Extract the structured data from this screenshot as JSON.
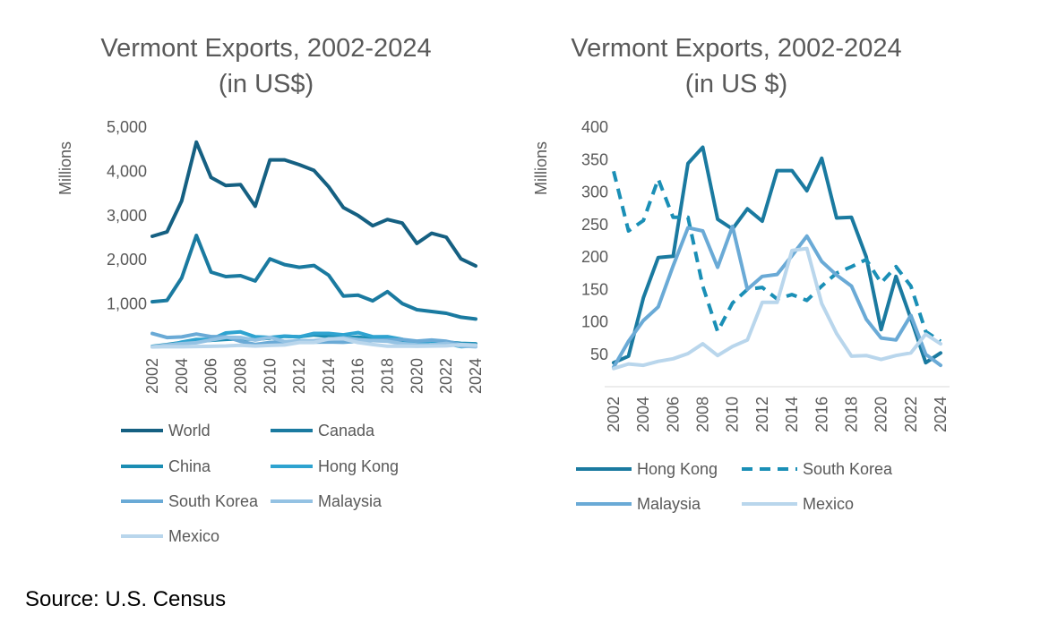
{
  "colors": {
    "World": "#156082",
    "Canada": "#1a7aa0",
    "China": "#1b8db3",
    "Hong Kong": "#2ea3d0",
    "South Korea": "#6aaad6",
    "Malaysia": "#94c2e3",
    "Mexico": "#b9d6ec",
    "HK_right": "#1a7aa0",
    "SK_right": "#1a8fb6",
    "MY_right": "#6aaad6",
    "MX_right": "#b9d6ec",
    "text": "#595959"
  },
  "source_note": "Source: U.S. Census",
  "chart_data": [
    {
      "type": "line",
      "title": [
        "Vermont Exports, 2002-2024",
        "(in US$)"
      ],
      "ylabel": "Millions",
      "ylim": [
        0,
        5000
      ],
      "yticks": [
        1000,
        2000,
        3000,
        4000,
        5000
      ],
      "ytick_labels": [
        "1,000",
        "2,000",
        "3,000",
        "4,000",
        "5,000"
      ],
      "x": [
        2002,
        2003,
        2004,
        2005,
        2006,
        2007,
        2008,
        2009,
        2010,
        2011,
        2012,
        2013,
        2014,
        2015,
        2016,
        2017,
        2018,
        2019,
        2020,
        2021,
        2022,
        2023,
        2024
      ],
      "xticks": [
        "2002",
        "2004",
        "2006",
        "2008",
        "2010",
        "2012",
        "2014",
        "2016",
        "2018",
        "2020",
        "2022",
        "2024"
      ],
      "legend_position": "bottom",
      "series": [
        {
          "name": "World",
          "values": [
            2530,
            2630,
            3330,
            4660,
            3860,
            3680,
            3700,
            3210,
            4260,
            4260,
            4150,
            4020,
            3650,
            3180,
            3000,
            2770,
            2910,
            2830,
            2370,
            2600,
            2510,
            2020,
            1860
          ]
        },
        {
          "name": "Canada",
          "values": [
            1050,
            1080,
            1590,
            2550,
            1720,
            1620,
            1640,
            1520,
            2020,
            1890,
            1830,
            1870,
            1650,
            1180,
            1200,
            1070,
            1280,
            1010,
            870,
            830,
            790,
            700,
            660
          ]
        },
        {
          "name": "China",
          "values": [
            40,
            80,
            130,
            160,
            180,
            200,
            210,
            200,
            230,
            270,
            260,
            300,
            270,
            230,
            250,
            210,
            190,
            170,
            150,
            160,
            140,
            110,
            100
          ]
        },
        {
          "name": "Hong Kong",
          "values": [
            37,
            47,
            137,
            199,
            201,
            344,
            369,
            258,
            243,
            274,
            255,
            333,
            333,
            302,
            352,
            260,
            261,
            200,
            88,
            170,
            105,
            37,
            52
          ]
        },
        {
          "name": "South Korea",
          "values": [
            332,
            240,
            256,
            320,
            261,
            261,
            155,
            85,
            129,
            150,
            153,
            135,
            142,
            133,
            155,
            175,
            185,
            196,
            160,
            185,
            155,
            85,
            70
          ]
        },
        {
          "name": "Malaysia",
          "values": [
            30,
            70,
            102,
            123,
            186,
            245,
            240,
            184,
            247,
            150,
            170,
            173,
            202,
            232,
            193,
            172,
            155,
            104,
            75,
            72,
            110,
            50,
            33
          ]
        },
        {
          "name": "Mexico",
          "values": [
            28,
            35,
            33,
            39,
            43,
            51,
            66,
            48,
            62,
            72,
            130,
            130,
            210,
            213,
            128,
            82,
            47,
            48,
            42,
            48,
            52,
            81,
            66
          ]
        }
      ]
    },
    {
      "type": "line",
      "title": [
        "Vermont Exports, 2002-2024",
        "(in US $)"
      ],
      "ylabel": "Millions",
      "ylim": [
        0,
        400
      ],
      "yticks": [
        50,
        100,
        150,
        200,
        250,
        300,
        350,
        400
      ],
      "ytick_labels": [
        "50",
        "100",
        "150",
        "200",
        "250",
        "300",
        "350",
        "400"
      ],
      "x": [
        2002,
        2003,
        2004,
        2005,
        2006,
        2007,
        2008,
        2009,
        2010,
        2011,
        2012,
        2013,
        2014,
        2015,
        2016,
        2017,
        2018,
        2019,
        2020,
        2021,
        2022,
        2023,
        2024
      ],
      "xticks": [
        "2002",
        "2004",
        "2006",
        "2008",
        "2010",
        "2012",
        "2014",
        "2016",
        "2018",
        "2020",
        "2022",
        "2024"
      ],
      "legend_position": "bottom",
      "series": [
        {
          "name": "Hong Kong",
          "dashed": false,
          "values": [
            37,
            47,
            137,
            199,
            201,
            344,
            369,
            258,
            243,
            274,
            255,
            333,
            333,
            302,
            352,
            260,
            261,
            200,
            88,
            170,
            105,
            37,
            52
          ]
        },
        {
          "name": "South Korea",
          "dashed": true,
          "values": [
            332,
            240,
            256,
            320,
            261,
            261,
            155,
            85,
            129,
            150,
            153,
            135,
            142,
            133,
            155,
            175,
            185,
            196,
            160,
            185,
            155,
            85,
            70
          ]
        },
        {
          "name": "Malaysia",
          "dashed": false,
          "values": [
            30,
            70,
            102,
            123,
            186,
            245,
            240,
            184,
            247,
            150,
            170,
            173,
            202,
            232,
            193,
            172,
            155,
            104,
            75,
            72,
            110,
            50,
            33
          ]
        },
        {
          "name": "Mexico",
          "dashed": false,
          "values": [
            28,
            35,
            33,
            39,
            43,
            51,
            66,
            48,
            62,
            72,
            130,
            130,
            210,
            213,
            128,
            82,
            47,
            48,
            42,
            48,
            52,
            81,
            66
          ]
        }
      ]
    }
  ]
}
